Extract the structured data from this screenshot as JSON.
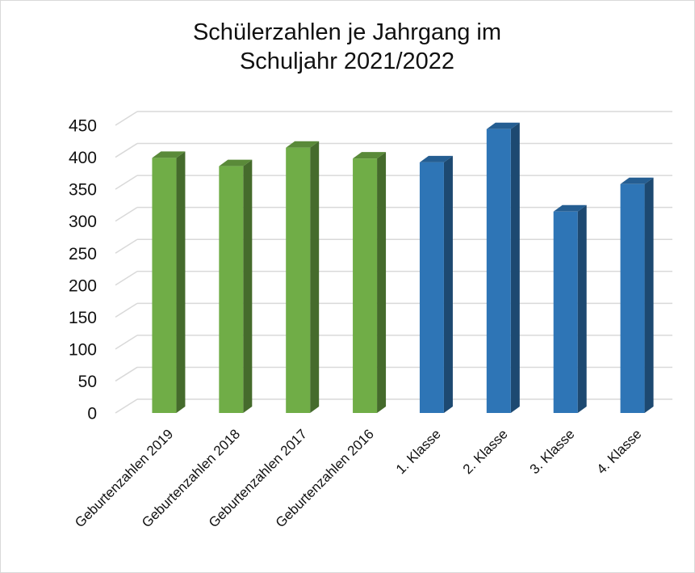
{
  "chart_data": {
    "type": "bar3d",
    "title": "Schülerzahlen je Jahrgang im Schuljahr 2021/2022",
    "categories": [
      "Geburtenzahlen 2019",
      "Geburtenzahlen 2018",
      "Geburtenzahlen 2017",
      "Geburtenzahlen 2016",
      "1. Klasse",
      "2. Klasse",
      "3. Klasse",
      "4. Klasse"
    ],
    "values": [
      399,
      386,
      415,
      398,
      392,
      444,
      315,
      358
    ],
    "colors": [
      "#70ad47",
      "#70ad47",
      "#70ad47",
      "#70ad47",
      "#2e75b6",
      "#2e75b6",
      "#2e75b6",
      "#2e75b6"
    ],
    "ylim": [
      0,
      450
    ],
    "yticks": [
      0,
      50,
      100,
      150,
      200,
      250,
      300,
      350,
      400,
      450
    ],
    "grid": true
  }
}
